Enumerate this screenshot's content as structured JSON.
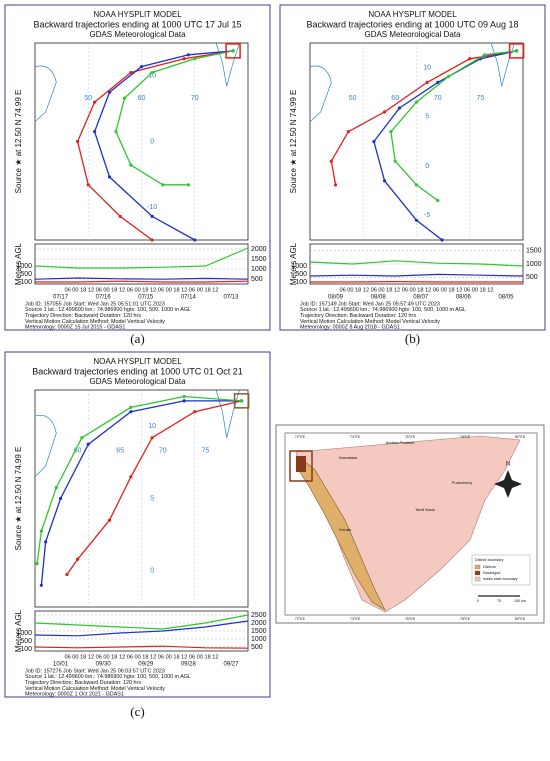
{
  "panels": [
    {
      "title": "NOAA HYSPLIT MODEL",
      "subtitle": "Backward trajectories ending at 1000 UTC 17 Jul 15",
      "model": "GDAS Meteorological Data",
      "source_label": "Source ★ at 12.50 N  74.99 E",
      "height_label": "Meters AGL",
      "lon_labels": [
        "50",
        "60",
        "70"
      ],
      "lat_labels": [
        "10",
        "0",
        "-10"
      ],
      "height_ticks_right": [
        "2000",
        "1500",
        "1000",
        "500"
      ],
      "height_ticks_left": [
        "1000",
        "500",
        "100"
      ],
      "hour_labels": "06 00 18 12 06 00 18 12 06 00 18 12 06 00 18 12 06 00 18 12",
      "dates": [
        "07/17",
        "07/16",
        "07/15",
        "07/14",
        "07/13"
      ],
      "footer": [
        "Job ID: 157055          Job Start: Wed Jan 25 05:51:01 UTC 2023",
        "Source 1 lat.: 12.499600  lon.: 74.986900  hgts: 100, 500, 1000 m AGL",
        "Trajectory Direction: Backward     Duration: 120 hrs",
        "Vertical Motion Calculation Method:     Model Vertical Velocity",
        "Meteorology: 0000Z 15 Jul 2015 - GDAS1"
      ],
      "caption": "(a)"
    },
    {
      "title": "NOAA HYSPLIT MODEL",
      "subtitle": "Backward trajectories ending at 1000 UTC 09 Aug 18",
      "model": "GDAS Meteorological Data",
      "source_label": "Source ★ at 12.50 N  74.99 E",
      "height_label": "Meters AGL",
      "lon_labels": [
        "50",
        "60",
        "70",
        "75"
      ],
      "lat_labels": [
        "10",
        "5",
        "0",
        "-5"
      ],
      "height_ticks_right": [
        "1500",
        "1000",
        "500"
      ],
      "height_ticks_left": [
        "1000",
        "500",
        "100"
      ],
      "hour_labels": "06 00 18 12 06 00 18 12 06 00 18 12 06 00 18 12 06 00 18 12",
      "dates": [
        "08/09",
        "08/08",
        "08/07",
        "08/06",
        "08/05"
      ],
      "footer": [
        "Job ID: 157149          Job Start: Wed Jan 25 05:57:49 UTC 2023",
        "Source 1 lat.: 12.499600  lon.: 74.986900  hgts: 100, 500, 1000 m AGL",
        "Trajectory Direction: Backward     Duration: 120 hrs",
        "Vertical Motion Calculation Method:     Model Vertical Velocity",
        "Meteorology: 0000Z  8 Aug 2018 - GDAS1"
      ],
      "caption": "(b)"
    },
    {
      "title": "NOAA HYSPLIT MODEL",
      "subtitle": "Backward trajectories ending at 1000 UTC 01 Oct 21",
      "model": "GDAS Meteorological Data",
      "source_label": "Source ★ at 12.50 N  74.99 E",
      "height_label": "Meters AGL",
      "lon_labels": [
        "60",
        "65",
        "70",
        "75"
      ],
      "lat_labels": [
        "10",
        "5",
        "0"
      ],
      "height_ticks_right": [
        "2500",
        "2000",
        "1500",
        "1000",
        "500"
      ],
      "height_ticks_left": [
        "1000",
        "500",
        "100"
      ],
      "hour_labels": "06 00 18 12 06 00 18 12 06 00 18 12 06 00 18 12 06 00 18 12",
      "dates": [
        "10/01",
        "09/30",
        "09/29",
        "09/28",
        "09/27"
      ],
      "footer": [
        "Job ID: 157276          Job Start: Wed Jan 25 06:03:57 UTC 2023",
        "Source 1 lat.: 12.499600  lon.: 74.986900  hgts: 100, 500, 1000 m AGL",
        "Trajectory Direction: Backward     Duration: 120 hrs",
        "Vertical Motion Calculation Method:     Model Vertical Velocity",
        "Meteorology: 0000Z  1 Oct 2021 - GDAS1"
      ],
      "caption": "(c)"
    }
  ],
  "map": {
    "north": "N",
    "states": [
      "Karnataka",
      "Andhra Pradesh",
      "Tamil Nadu",
      "Puducherry",
      "Kerala"
    ],
    "lon_ticks": [
      "72°0'E",
      "74°0'E",
      "76°0'E",
      "78°0'E",
      "80°0'E"
    ],
    "legend_title": "District boundary",
    "legend": [
      "Districts",
      "Kasaragod",
      "Indian state boundary"
    ],
    "scale": [
      "0",
      "75",
      "150 km"
    ]
  }
}
